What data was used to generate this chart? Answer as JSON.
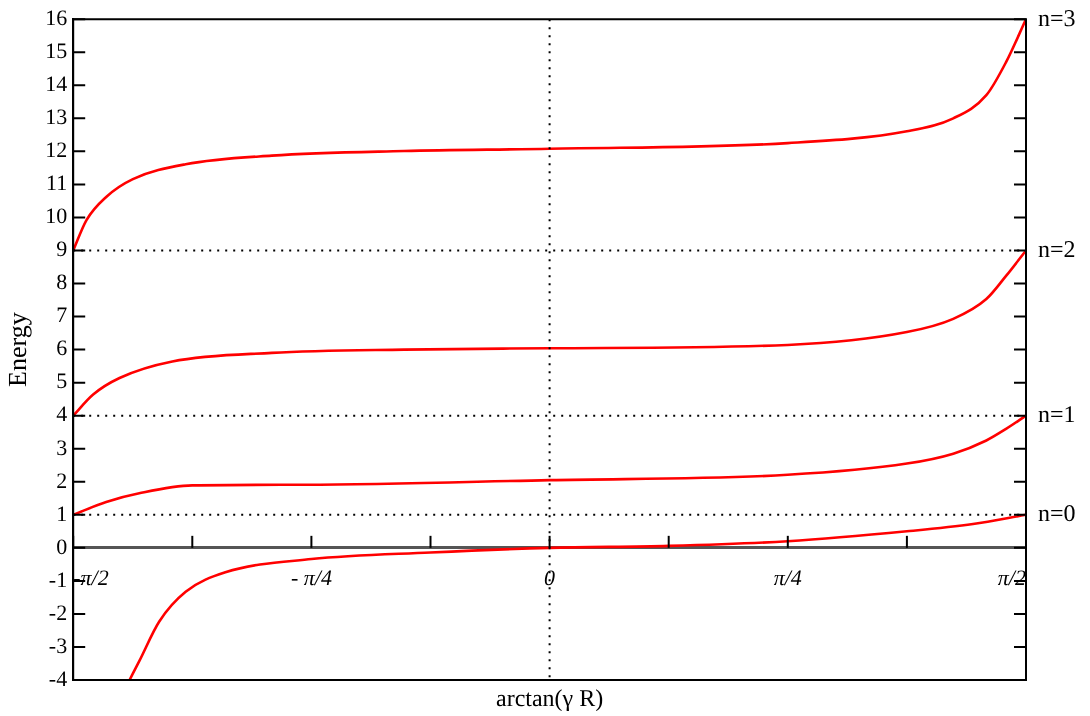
{
  "chart_data": {
    "type": "line",
    "xlabel": "arctan(γ R)",
    "ylabel": "Energy",
    "xlim": [
      -1.5708,
      1.5708
    ],
    "ylim": [
      -4,
      16
    ],
    "xticks": [
      {
        "value": -1.5708,
        "label": "-π/2"
      },
      {
        "value": -1.1781,
        "label": null
      },
      {
        "value": -0.7854,
        "label": "- π/4"
      },
      {
        "value": -0.3927,
        "label": null
      },
      {
        "value": 0,
        "label": "0"
      },
      {
        "value": 0.3927,
        "label": null
      },
      {
        "value": 0.7854,
        "label": "π/4"
      },
      {
        "value": 1.1781,
        "label": null
      },
      {
        "value": 1.5708,
        "label": "π/2"
      }
    ],
    "yticks": [
      -4,
      -3,
      -2,
      -1,
      0,
      1,
      2,
      3,
      4,
      5,
      6,
      7,
      8,
      9,
      10,
      11,
      12,
      13,
      14,
      15,
      16
    ],
    "grid": false,
    "legend": false,
    "marker": "none",
    "line_style": "solid",
    "ref_lines": [
      {
        "axis": "y",
        "value": 1,
        "line_style": "dotted"
      },
      {
        "axis": "y",
        "value": 4,
        "line_style": "dotted"
      },
      {
        "axis": "y",
        "value": 9,
        "line_style": "dotted"
      },
      {
        "axis": "x",
        "value": 0,
        "line_style": "dotted"
      }
    ],
    "series": [
      {
        "name": "n=0",
        "color": "#ff0000",
        "x": [
          -1.385,
          -1.353,
          -1.287,
          -1.2,
          -1.069,
          -0.785,
          -0.393,
          0,
          0.393,
          0.785,
          1.178,
          1.396,
          1.5708
        ],
        "values": [
          -4,
          -3.43,
          -2.23,
          -1.33,
          -0.74,
          -0.34,
          -0.14,
          0,
          0.06,
          0.2,
          0.5,
          0.72,
          1
        ]
      },
      {
        "name": "n=1",
        "color": "#ff0000",
        "x": [
          -1.5708,
          -1.462,
          -1.353,
          -1.178,
          -0.807,
          0,
          0.785,
          1.178,
          1.331,
          1.44,
          1.505,
          1.5708
        ],
        "values": [
          1,
          1.39,
          1.65,
          1.89,
          1.91,
          2.05,
          2.21,
          2.55,
          2.85,
          3.25,
          3.6,
          4
        ]
      },
      {
        "name": "n=2",
        "color": "#ff0000",
        "x": [
          -1.5708,
          -1.505,
          -1.418,
          -1.244,
          -0.916,
          -0.48,
          0,
          0.785,
          1.178,
          1.331,
          1.44,
          1.505,
          1.5708
        ],
        "values": [
          4,
          4.64,
          5.14,
          5.64,
          5.9,
          6,
          6.04,
          6.14,
          6.53,
          6.93,
          7.53,
          8.23,
          9
        ]
      },
      {
        "name": "n=3",
        "color": "#ff0000",
        "x": [
          -1.5708,
          -1.527,
          -1.462,
          -1.374,
          -1.2,
          -0.916,
          -0.48,
          0,
          0.785,
          1.178,
          1.331,
          1.44,
          1.505,
          1.5708
        ],
        "values": [
          9,
          9.92,
          10.62,
          11.16,
          11.61,
          11.87,
          12.01,
          12.08,
          12.25,
          12.61,
          13,
          13.7,
          14.7,
          16
        ]
      }
    ]
  }
}
